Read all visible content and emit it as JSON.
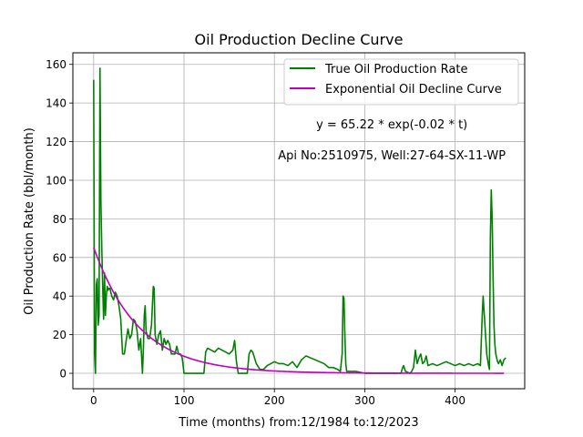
{
  "chart_data": {
    "type": "line",
    "title": "Oil Production Decline Curve",
    "xlabel": "Time (months) from:12/1984 to:12/2023",
    "ylabel": "Oil Production Rate (bbl/month)",
    "xlim": [
      -23,
      477
    ],
    "ylim": [
      -8,
      166
    ],
    "xticks": [
      0,
      100,
      200,
      300,
      400
    ],
    "yticks": [
      0,
      20,
      40,
      60,
      80,
      100,
      120,
      140,
      160
    ],
    "grid": true,
    "legend_position": "top-right",
    "annotations": [
      {
        "text": "y = 65.22 * exp(-0.02 * t)",
        "x": 330,
        "y": 129
      },
      {
        "text": "Api No:2510975, Well:27-64-SX-11-WP",
        "x": 330,
        "y": 113
      }
    ],
    "series": [
      {
        "name": "True Oil Production Rate",
        "color": "#008000",
        "x": [
          0,
          1,
          2,
          3,
          4,
          5,
          6,
          7,
          8,
          9,
          10,
          11,
          12,
          13,
          14,
          15,
          16,
          17,
          18,
          20,
          22,
          24,
          26,
          28,
          30,
          32,
          34,
          36,
          38,
          40,
          42,
          44,
          46,
          48,
          50,
          52,
          54,
          55,
          56,
          57,
          58,
          60,
          62,
          64,
          66,
          67,
          68,
          70,
          72,
          74,
          76,
          78,
          80,
          82,
          84,
          86,
          88,
          90,
          92,
          94,
          96,
          98,
          100,
          110,
          120,
          122,
          124,
          126,
          130,
          134,
          138,
          142,
          146,
          150,
          154,
          156,
          158,
          160,
          170,
          172,
          174,
          176,
          178,
          180,
          184,
          188,
          192,
          196,
          200,
          205,
          210,
          215,
          220,
          225,
          230,
          235,
          240,
          245,
          250,
          255,
          260,
          265,
          270,
          273,
          275,
          276,
          277,
          278,
          279,
          280,
          282,
          290,
          300,
          320,
          340,
          342,
          343,
          345,
          350,
          352,
          354,
          356,
          358,
          360,
          362,
          364,
          366,
          368,
          370,
          375,
          380,
          385,
          390,
          395,
          400,
          405,
          410,
          415,
          420,
          425,
          428,
          430,
          431,
          433,
          435,
          437,
          438,
          439,
          440,
          441,
          442,
          443,
          444,
          445,
          446,
          447,
          448,
          450,
          452,
          454,
          456
        ],
        "y": [
          152,
          10,
          0,
          46,
          49,
          25,
          30,
          158,
          90,
          65,
          45,
          28,
          52,
          30,
          40,
          45,
          43,
          44,
          44,
          40,
          38,
          42,
          40,
          35,
          28,
          10,
          10,
          17,
          23,
          18,
          20,
          28,
          27,
          22,
          12,
          18,
          0,
          12,
          30,
          35,
          22,
          18,
          18,
          25,
          45,
          44,
          20,
          15,
          20,
          22,
          12,
          18,
          15,
          17,
          15,
          10,
          10,
          10,
          14,
          10,
          10,
          8,
          0,
          0,
          0,
          0,
          11,
          13,
          12,
          11,
          13,
          12,
          11,
          10,
          12,
          17,
          6,
          0,
          0,
          10,
          12,
          11,
          8,
          5,
          2,
          2,
          4,
          5,
          6,
          5,
          5,
          4,
          6,
          3,
          7,
          9,
          8,
          7,
          6,
          5,
          3,
          3,
          2,
          1,
          10,
          40,
          39,
          20,
          5,
          1,
          1,
          1,
          0,
          0,
          0,
          3,
          4,
          1,
          0,
          1,
          3,
          12,
          5,
          8,
          10,
          5,
          6,
          9,
          4,
          5,
          4,
          5,
          6,
          5,
          4,
          5,
          4,
          5,
          4,
          5,
          4,
          30,
          40,
          25,
          10,
          4,
          2,
          70,
          95,
          80,
          50,
          25,
          15,
          10,
          8,
          6,
          5,
          7,
          4,
          7,
          8
        ]
      },
      {
        "name": "Exponential Oil Decline Curve",
        "color": "#bf00bf",
        "model": {
          "a": 65.22,
          "b": 0.02,
          "t_start": 0,
          "t_end": 455
        }
      }
    ]
  }
}
